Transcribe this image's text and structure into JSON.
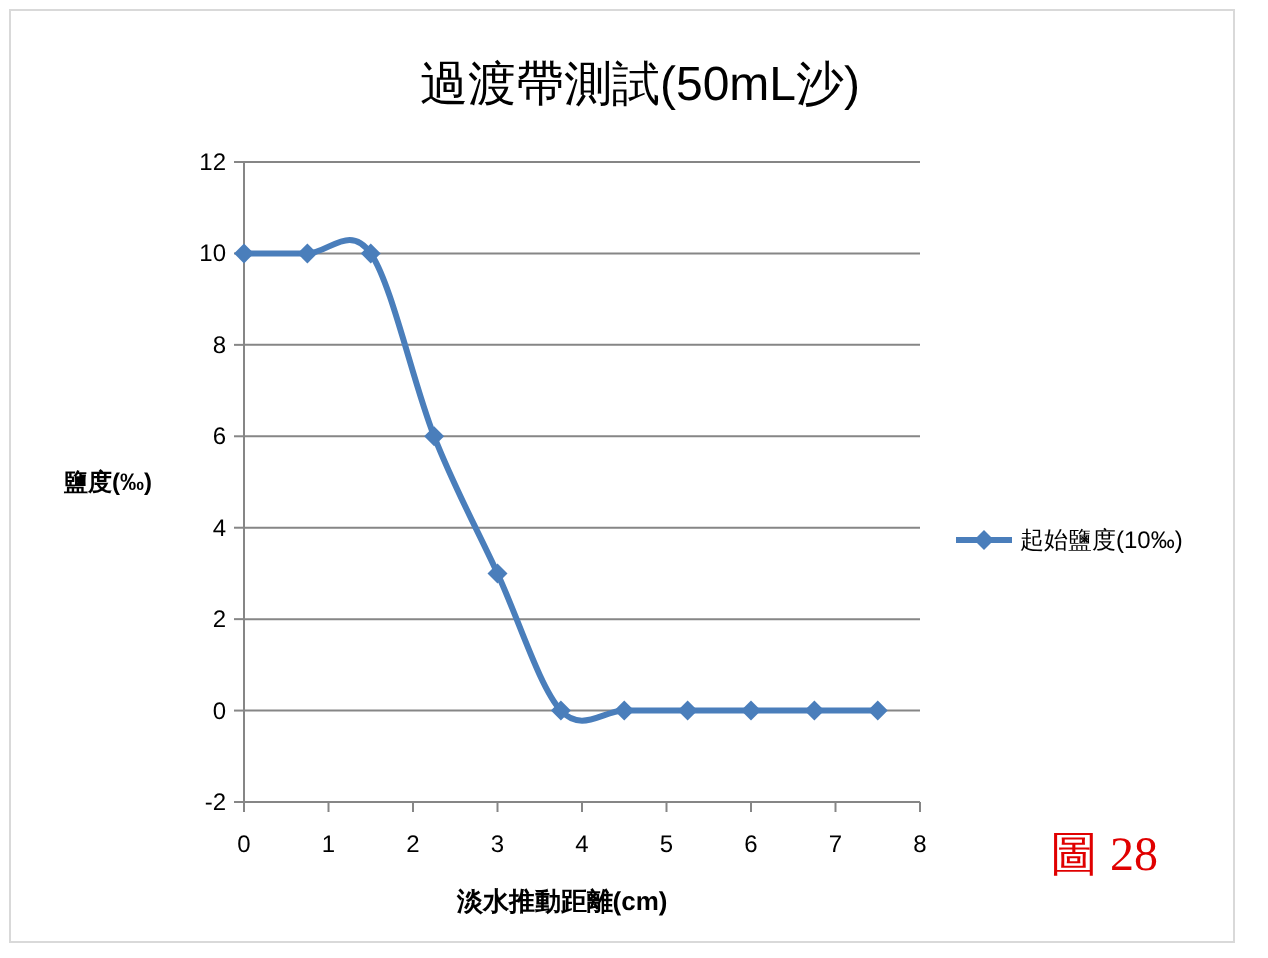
{
  "chart_data": {
    "type": "line",
    "title": "過渡帶測試(50mL沙)",
    "xlabel": "淡水推動距離(cm)",
    "ylabel": "鹽度(‰)",
    "x": [
      0,
      0.75,
      1.5,
      2.25,
      3,
      3.75,
      4.5,
      5.25,
      6,
      6.75,
      7.5
    ],
    "series": [
      {
        "name": "起始鹽度(10‰)",
        "color": "#4a7ebb",
        "values": [
          10,
          10,
          10,
          6,
          3,
          0,
          0,
          0,
          0,
          0,
          0
        ]
      }
    ],
    "xlim": [
      0,
      8
    ],
    "xticks": [
      0,
      1,
      2,
      3,
      4,
      5,
      6,
      7,
      8
    ],
    "ylim": [
      -2,
      12
    ],
    "yticks": [
      -2,
      0,
      2,
      4,
      6,
      8,
      10,
      12
    ],
    "grid": "y",
    "legend": "right",
    "marker": "diamond",
    "line_style": "solid",
    "annotations": [
      "圖 28"
    ]
  }
}
